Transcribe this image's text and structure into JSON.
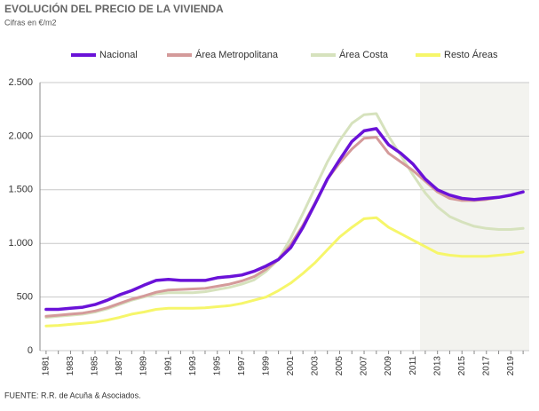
{
  "chart_data": {
    "type": "line",
    "title": "EVOLUCIÓN DEL PRECIO DE LA VIVIENDA",
    "subtitle": "Cifras en €/m2",
    "source": "FUENTE: R.R. de Acuña & Asociados.",
    "x": [
      1981,
      1982,
      1983,
      1984,
      1985,
      1986,
      1987,
      1988,
      1989,
      1990,
      1991,
      1992,
      1993,
      1994,
      1995,
      1996,
      1997,
      1998,
      1999,
      2000,
      2001,
      2002,
      2003,
      2004,
      2005,
      2006,
      2007,
      2008,
      2009,
      2010,
      2011,
      2012,
      2013,
      2014,
      2015,
      2016,
      2017,
      2018,
      2019,
      2020
    ],
    "series": [
      {
        "name": "Nacional",
        "color": "#6a12d8",
        "values": [
          385,
          385,
          395,
          405,
          430,
          470,
          520,
          560,
          610,
          655,
          665,
          655,
          655,
          655,
          680,
          690,
          705,
          740,
          790,
          850,
          960,
          1150,
          1370,
          1600,
          1780,
          1950,
          2050,
          2070,
          1920,
          1840,
          1740,
          1600,
          1500,
          1450,
          1420,
          1410,
          1420,
          1430,
          1450,
          1480
        ]
      },
      {
        "name": "Área Metropolitana",
        "color": "#d49a9a",
        "values": [
          320,
          330,
          340,
          350,
          370,
          400,
          440,
          480,
          510,
          545,
          565,
          570,
          575,
          580,
          600,
          620,
          650,
          690,
          760,
          850,
          990,
          1170,
          1380,
          1600,
          1750,
          1880,
          1980,
          1990,
          1840,
          1760,
          1680,
          1580,
          1480,
          1420,
          1400,
          1400,
          1410,
          1430,
          1450,
          1480
        ]
      },
      {
        "name": "Área Costa",
        "color": "#d6e2bd",
        "values": [
          310,
          320,
          330,
          340,
          360,
          390,
          430,
          470,
          500,
          530,
          540,
          540,
          540,
          550,
          570,
          590,
          620,
          660,
          740,
          850,
          1050,
          1280,
          1520,
          1760,
          1960,
          2120,
          2200,
          2210,
          2000,
          1820,
          1640,
          1470,
          1340,
          1250,
          1200,
          1160,
          1140,
          1130,
          1130,
          1140
        ]
      },
      {
        "name": "Resto Áreas",
        "color": "#f6f66a",
        "values": [
          230,
          235,
          245,
          255,
          265,
          285,
          310,
          340,
          360,
          385,
          395,
          395,
          395,
          400,
          410,
          420,
          440,
          470,
          500,
          560,
          630,
          720,
          820,
          940,
          1060,
          1150,
          1230,
          1240,
          1150,
          1090,
          1030,
          970,
          910,
          890,
          880,
          880,
          880,
          890,
          900,
          920
        ]
      }
    ],
    "xlim": [
      1980.5,
      2020.5
    ],
    "xticks": [
      1981,
      1983,
      1985,
      1987,
      1989,
      1991,
      1993,
      1995,
      1997,
      1999,
      2001,
      2003,
      2005,
      2007,
      2009,
      2011,
      2013,
      2015,
      2017,
      2019
    ],
    "ylim": [
      0,
      2500
    ],
    "yticks": [
      0,
      500,
      {
        "value": 1000,
        "label": "1.000"
      },
      {
        "value": 1500,
        "label": "1.500"
      },
      {
        "value": 2000,
        "label": "2.000"
      },
      {
        "value": 2500,
        "label": "2.500"
      }
    ],
    "grid": true,
    "legend": "top"
  }
}
